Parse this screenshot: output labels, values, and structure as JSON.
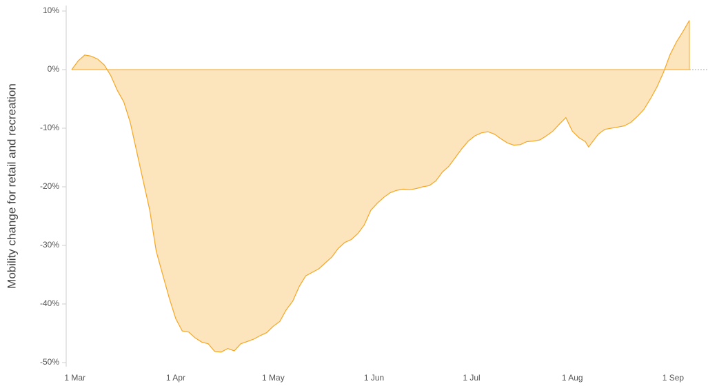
{
  "chart_data": {
    "type": "area",
    "y_label": "Mobility change for retail and recreation",
    "color": "#f5a623",
    "x": [
      "29 Feb",
      "2 Mar",
      "4 Mar",
      "6 Mar",
      "8 Mar",
      "10 Mar",
      "12 Mar",
      "14 Mar",
      "16 Mar",
      "18 Mar",
      "20 Mar",
      "22 Mar",
      "24 Mar",
      "26 Mar",
      "28 Mar",
      "30 Mar",
      "1 Apr",
      "3 Apr",
      "5 Apr",
      "7 Apr",
      "9 Apr",
      "11 Apr",
      "13 Apr",
      "15 Apr",
      "17 Apr",
      "19 Apr",
      "21 Apr",
      "23 Apr",
      "25 Apr",
      "27 Apr",
      "29 Apr",
      "1 May",
      "3 May",
      "5 May",
      "7 May",
      "9 May",
      "11 May",
      "13 May",
      "15 May",
      "17 May",
      "19 May",
      "21 May",
      "23 May",
      "25 May",
      "27 May",
      "29 May",
      "31 May",
      "2 Jun",
      "4 Jun",
      "6 Jun",
      "8 Jun",
      "10 Jun",
      "12 Jun",
      "14 Jun",
      "16 Jun",
      "18 Jun",
      "20 Jun",
      "22 Jun",
      "24 Jun",
      "26 Jun",
      "28 Jun",
      "30 Jun",
      "2 Jul",
      "4 Jul",
      "6 Jul",
      "8 Jul",
      "10 Jul",
      "12 Jul",
      "14 Jul",
      "16 Jul",
      "18 Jul",
      "20 Jul",
      "22 Jul",
      "24 Jul",
      "26 Jul",
      "28 Jul",
      "30 Jul",
      "1 Aug",
      "3 Aug",
      "5 Aug",
      "6 Aug",
      "9 Aug",
      "11 Aug",
      "13 Aug",
      "15 Aug",
      "17 Aug",
      "19 Aug",
      "21 Aug",
      "23 Aug",
      "25 Aug",
      "27 Aug",
      "29 Aug",
      "31 Aug",
      "2 Sep",
      "4 Sep",
      "6 Sep"
    ],
    "values": [
      0,
      1.5,
      2.5,
      2.3,
      1.8,
      0.8,
      -1,
      -3.5,
      -5.5,
      -9,
      -14,
      -19,
      -24,
      -31,
      -35,
      -39,
      -42.5,
      -44.6,
      -44.8,
      -45.8,
      -46.5,
      -46.8,
      -48.1,
      -48.2,
      -47.6,
      -48,
      -46.8,
      -46.4,
      -46,
      -45.4,
      -44.9,
      -43.8,
      -43,
      -41,
      -39.5,
      -37,
      -35.2,
      -34.6,
      -34,
      -33,
      -32,
      -30.5,
      -29.5,
      -29,
      -28,
      -26.5,
      -24,
      -22.8,
      -21.8,
      -21,
      -20.6,
      -20.4,
      -20.5,
      -20.3,
      -20,
      -19.8,
      -19,
      -17.5,
      -16.5,
      -15,
      -13.5,
      -12.2,
      -11.3,
      -10.8,
      -10.6,
      -11,
      -11.8,
      -12.5,
      -12.9,
      -12.8,
      -12.3,
      -12.2,
      -12,
      -11.3,
      -10.5,
      -9.3,
      -8.2,
      -10.5,
      -11.6,
      -12.3,
      -13.2,
      -11,
      -10.2,
      -10,
      -9.8,
      -9.6,
      -9,
      -8,
      -6.8,
      -5,
      -3,
      -0.5,
      2.5,
      4.7,
      6.5,
      8.4
    ],
    "xlim": [
      "29 Feb",
      "6 Sep"
    ],
    "xticks": [
      "1 Mar",
      "1 Apr",
      "1 May",
      "1 Jun",
      "1 Jul",
      "1 Aug",
      "1 Sep"
    ],
    "ylim": [
      -50,
      10
    ],
    "yticks": [
      {
        "value": 10,
        "label": "10%"
      },
      {
        "value": 0,
        "label": "0%"
      },
      {
        "value": -10,
        "label": "-10%"
      },
      {
        "value": -20,
        "label": "-20%"
      },
      {
        "value": -30,
        "label": "-30%"
      },
      {
        "value": -40,
        "label": "-40%"
      },
      {
        "value": -50,
        "label": "-50%"
      }
    ]
  }
}
